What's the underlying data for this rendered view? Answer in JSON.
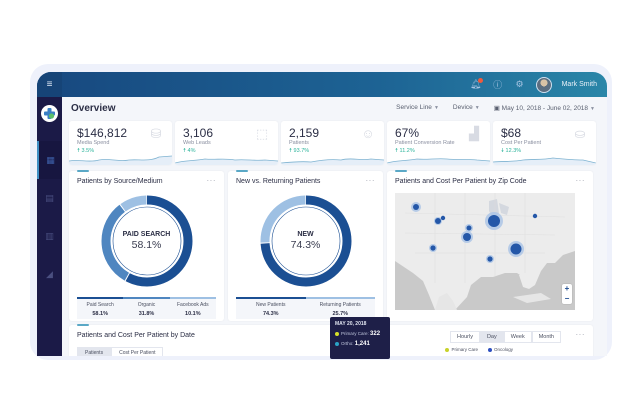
{
  "header": {
    "user_name": "Mark Smith",
    "icons": [
      "menu-icon",
      "bell-icon",
      "help-icon",
      "gear-icon"
    ]
  },
  "page": {
    "title": "Overview",
    "filters": {
      "service_line": "Service Line",
      "device": "Device",
      "date_range": "May 10, 2018 - June 02, 2018"
    }
  },
  "sidebar": {
    "items": [
      {
        "icon": "dashboard-icon",
        "active": true
      },
      {
        "icon": "image-icon",
        "active": false
      },
      {
        "icon": "clipboard-icon",
        "active": false
      },
      {
        "icon": "chart-icon",
        "active": false
      }
    ]
  },
  "kpis": [
    {
      "value": "$146,812",
      "label": "Media Spend",
      "delta": "3.5%",
      "direction": "up",
      "icon": "coins-icon"
    },
    {
      "value": "3,106",
      "label": "Web Leads",
      "delta": "4%",
      "direction": "up",
      "icon": "click-icon"
    },
    {
      "value": "2,159",
      "label": "Patients",
      "delta": "93.7%",
      "direction": "up",
      "icon": "patient-icon"
    },
    {
      "value": "67%",
      "label": "Patient Conversion Rate",
      "delta": "11.2%",
      "direction": "up",
      "icon": "bar-chart-icon"
    },
    {
      "value": "$68",
      "label": "Cost Per Patient",
      "delta": "12.3%",
      "direction": "down",
      "icon": "money-icon"
    }
  ],
  "source_card": {
    "title": "Patients by Source/Medium",
    "center_label": "PAID SEARCH",
    "center_value": "58.1%",
    "segments": [
      {
        "name": "Paid Search",
        "value": "58.1%",
        "pct": 58.1,
        "color": "#1b4f93"
      },
      {
        "name": "Organic",
        "value": "31.8%",
        "pct": 31.8,
        "color": "#4f86c0"
      },
      {
        "name": "Facebook Ads",
        "value": "10.1%",
        "pct": 10.1,
        "color": "#9ec0e3"
      }
    ]
  },
  "new_returning_card": {
    "title": "New vs. Returning Patients",
    "center_label": "NEW",
    "center_value": "74.3%",
    "segments": [
      {
        "name": "New Patients",
        "value": "74.3%",
        "pct": 74.3,
        "color": "#1b4f93"
      },
      {
        "name": "Returning Patients",
        "value": "25.7%",
        "pct": 25.7,
        "color": "#9ec0e3"
      }
    ]
  },
  "map_card": {
    "title": "Patients and Cost Per Patient by Zip Code",
    "zoom_in": "+",
    "zoom_out": "−"
  },
  "date_card": {
    "title": "Patients and Cost Per Patient by Date",
    "tabs": [
      {
        "label": "Patients",
        "active": true
      },
      {
        "label": "Cost Per Patient",
        "active": false
      }
    ],
    "periods": [
      {
        "label": "Hourly",
        "active": false
      },
      {
        "label": "Day",
        "active": true
      },
      {
        "label": "Week",
        "active": false
      },
      {
        "label": "Month",
        "active": false
      }
    ],
    "legend": [
      {
        "name": "Primary Care",
        "color": "#c8d22a"
      },
      {
        "name": "Oncology",
        "color": "#2d4fc0"
      }
    ]
  },
  "tooltip": {
    "date": "MAY 20, 2018",
    "rows": [
      {
        "name": "Primary Care:",
        "value": "322",
        "color": "#d6e02a"
      },
      {
        "name": "Ortho:",
        "value": "1,241",
        "color": "#2ba3c6"
      }
    ]
  },
  "more_label": "···"
}
